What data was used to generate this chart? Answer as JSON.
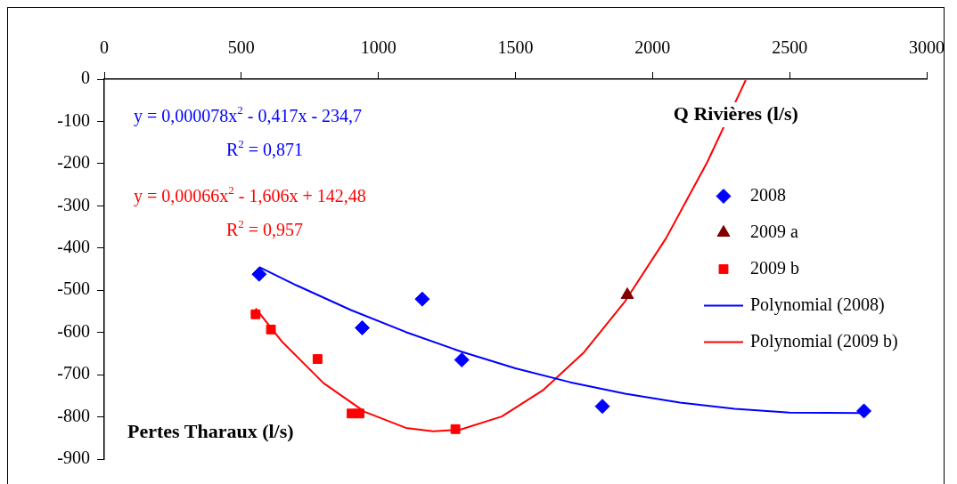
{
  "chart_data": {
    "type": "scatter",
    "xlabel": "Q Rivières (l/s)",
    "ylabel": "Pertes Tharaux (l/s)",
    "annotations": [
      "y = 0,000078x$^{2}$ - 0,417x - 234,7",
      "R$^{2}$ = 0,871",
      "y = 0,00066x$^{2}$ - 1,606x + 142,48",
      "R$^{2}$ = 0,957"
    ],
    "xlim": [
      0,
      3000
    ],
    "xticks": [
      0,
      500,
      1000,
      1500,
      2000,
      2500,
      3000
    ],
    "ylim": [
      -900,
      0
    ],
    "yticks": [
      -900,
      -800,
      -700,
      -600,
      -500,
      -400,
      -300,
      -200,
      -100,
      0
    ],
    "grid": false,
    "legend": "right",
    "series": [
      {
        "name": "2008",
        "type": "scatter",
        "marker": "diamond",
        "color": "#0000ff",
        "x": [
          565,
          941,
          1160,
          1304,
          1817,
          2771
        ],
        "values": [
          -462,
          -589,
          -521,
          -665,
          -775,
          -786
        ]
      },
      {
        "name": "2009 a",
        "type": "scatter",
        "marker": "triangle",
        "color": "#800000",
        "x": [
          1908
        ],
        "values": [
          -511
        ]
      },
      {
        "name": "2009 b",
        "type": "scatter",
        "marker": "square",
        "color": "#ff0000",
        "x": [
          552,
          608,
          778,
          902,
          931,
          1281
        ],
        "values": [
          -557,
          -593,
          -663,
          -792,
          -792,
          -829
        ]
      },
      {
        "name": "Polynomial (2008)",
        "type": "line",
        "marker": "none",
        "line_style": "solid",
        "color": "#0000ff",
        "x": [
          565,
          700,
          900,
          1100,
          1300,
          1500,
          1700,
          1900,
          2100,
          2300,
          2500,
          2771
        ],
        "values": [
          -445,
          -488,
          -547,
          -599,
          -645,
          -685,
          -718,
          -745,
          -766,
          -781,
          -790,
          -791
        ]
      },
      {
        "name": "Polynomial (2009 b)",
        "type": "line",
        "marker": "none",
        "line_style": "solid",
        "color": "#ff0000",
        "x": [
          552,
          650,
          800,
          950,
          1100,
          1200,
          1300,
          1450,
          1600,
          1750,
          1900,
          2050,
          2200,
          2340
        ],
        "values": [
          -543,
          -623,
          -720,
          -788,
          -826,
          -834,
          -830,
          -799,
          -737,
          -647,
          -526,
          -376,
          -196,
          -2
        ]
      }
    ]
  }
}
